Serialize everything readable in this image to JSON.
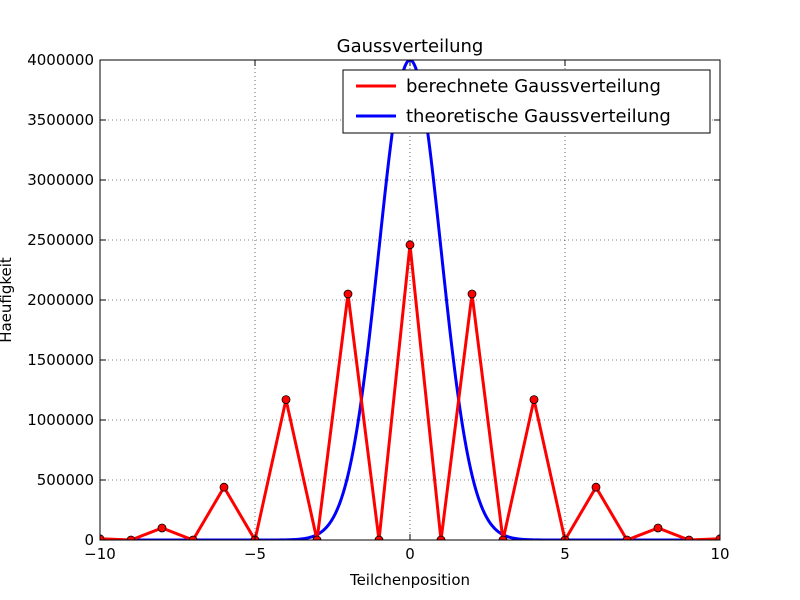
{
  "chart_data": {
    "type": "line",
    "title": "Gaussverteilung",
    "xlabel": "Teilchenposition",
    "ylabel": "Haeufigkeit",
    "xlim": [
      -10,
      10
    ],
    "ylim": [
      0,
      4000000
    ],
    "xticks": [
      -10,
      -5,
      0,
      5,
      10
    ],
    "xtick_labels": [
      "−10",
      "−5",
      "0",
      "5",
      "10"
    ],
    "yticks": [
      0,
      500000,
      1000000,
      1500000,
      2000000,
      2500000,
      3000000,
      3500000,
      4000000
    ],
    "ytick_labels": [
      "0",
      "500000",
      "1000000",
      "1500000",
      "2000000",
      "2500000",
      "3000000",
      "3500000",
      "4000000"
    ],
    "grid": true,
    "legend_position": "top-right",
    "series": [
      {
        "name": "berechnete Gaussverteilung",
        "color": "#ff0000",
        "marker": "circle",
        "x": [
          -10,
          -9,
          -8,
          -7,
          -6,
          -5,
          -4,
          -3,
          -2,
          -1,
          0,
          1,
          2,
          3,
          4,
          5,
          6,
          7,
          8,
          9,
          10
        ],
        "y": [
          10000,
          0,
          100000,
          0,
          440000,
          0,
          1170000,
          0,
          2050000,
          0,
          2460000,
          0,
          2050000,
          0,
          1170000,
          0,
          440000,
          0,
          100000,
          0,
          10000
        ]
      },
      {
        "name": "theoretische Gaussverteilung",
        "color": "#0000ff",
        "function": "gaussian",
        "mean": 0,
        "sigma": 1,
        "amplitude": 4000000
      }
    ]
  }
}
